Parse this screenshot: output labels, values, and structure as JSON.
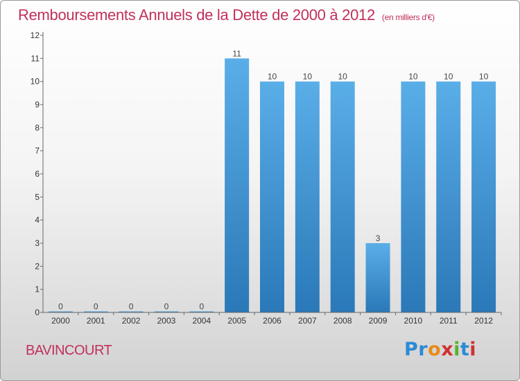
{
  "chart_data": {
    "type": "bar",
    "title": "Remboursements Annuels de la Dette de 2000 à 2012",
    "unit": "(en milliers d'€)",
    "categories": [
      "2000",
      "2001",
      "2002",
      "2003",
      "2004",
      "2005",
      "2006",
      "2007",
      "2008",
      "2009",
      "2010",
      "2011",
      "2012"
    ],
    "values": [
      0,
      0,
      0,
      0,
      0,
      11,
      10,
      10,
      10,
      3,
      10,
      10,
      10
    ],
    "value_labels": [
      "0",
      "0",
      "0",
      "0",
      "0",
      "11",
      "10",
      "10",
      "10",
      "3",
      "10",
      "10",
      "10"
    ],
    "ylim": [
      0,
      12
    ],
    "yticks": [
      "0",
      "1",
      "2",
      "3",
      "4",
      "5",
      "6",
      "7",
      "8",
      "9",
      "10",
      "11",
      "12"
    ],
    "grid": false,
    "bar_color_top": "#5aaee8",
    "bar_color_bottom": "#2a78b8"
  },
  "footer": {
    "city": "BAVINCOURT",
    "logo_letters": [
      "P",
      "r",
      "o",
      "x",
      "i",
      "t",
      "i"
    ],
    "logo_colors": [
      "#2b8ad6",
      "#2b8ad6",
      "#e88b1a",
      "#d03030",
      "#58b030",
      "#2b8ad6",
      "#d03030"
    ]
  }
}
